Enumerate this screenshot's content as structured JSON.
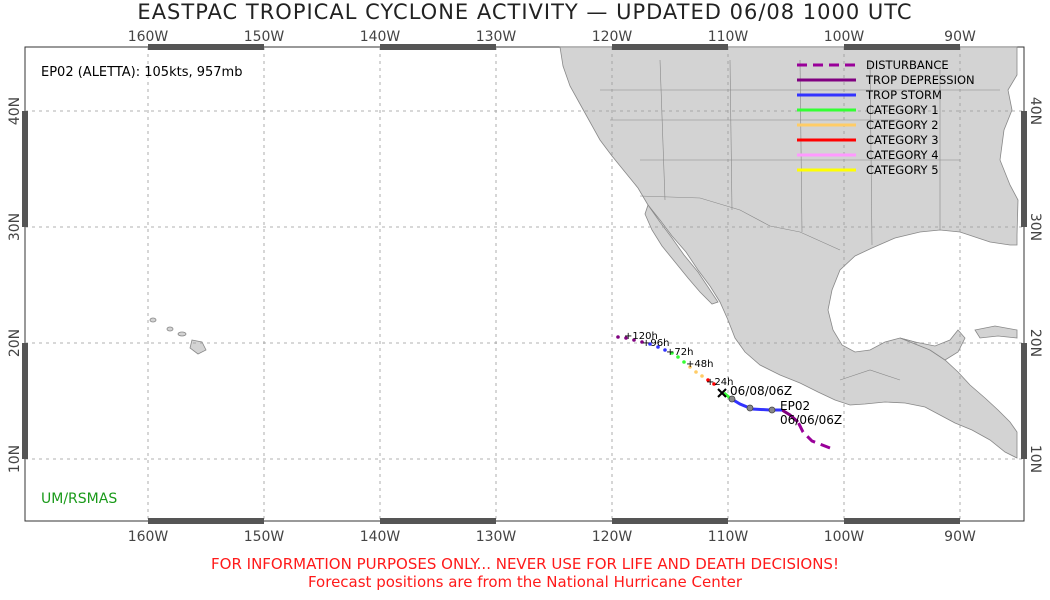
{
  "title": "EASTPAC TROPICAL CYCLONE ACTIVITY — UPDATED 06/08 1000 UTC",
  "storm_info": "EP02 (ALETTA): 105kts, 957mb",
  "credit": "UM/RSMAS",
  "disclaimer": "FOR INFORMATION PURPOSES ONLY... NEVER USE FOR LIFE AND DEATH DECISIONS!",
  "source_note": "Forecast positions are from the National Hurricane Center",
  "lon_labels": [
    "160W",
    "150W",
    "140W",
    "130W",
    "120W",
    "110W",
    "100W",
    "90W"
  ],
  "lat_labels": [
    "40N",
    "30N",
    "20N",
    "10N"
  ],
  "legend": [
    {
      "label": "DISTURBANCE",
      "color": "#990099",
      "dashed": true
    },
    {
      "label": "TROP DEPRESSION",
      "color": "#800080",
      "dashed": false
    },
    {
      "label": "TROP STORM",
      "color": "#3333ff",
      "dashed": false
    },
    {
      "label": "CATEGORY 1",
      "color": "#33ff33",
      "dashed": false
    },
    {
      "label": "CATEGORY 2",
      "color": "#ffcc66",
      "dashed": false
    },
    {
      "label": "CATEGORY 3",
      "color": "#ff0000",
      "dashed": false
    },
    {
      "label": "CATEGORY 4",
      "color": "#ff99ff",
      "dashed": false
    },
    {
      "label": "CATEGORY 5",
      "color": "#ffff00",
      "dashed": false
    }
  ],
  "track_labels": {
    "current": "06/08/06Z",
    "storm_id": "EP02",
    "start": "06/06/06Z"
  },
  "forecast_labels": [
    "+120h",
    "+96h",
    "+72h",
    "+48h",
    "+24h"
  ],
  "colors": {
    "land": "#d3d3d3",
    "land_border": "#888888",
    "grid": "#999999",
    "frame_tick": "#555555",
    "warning": "#ff1a1a",
    "credit": "#1a9a1a"
  }
}
